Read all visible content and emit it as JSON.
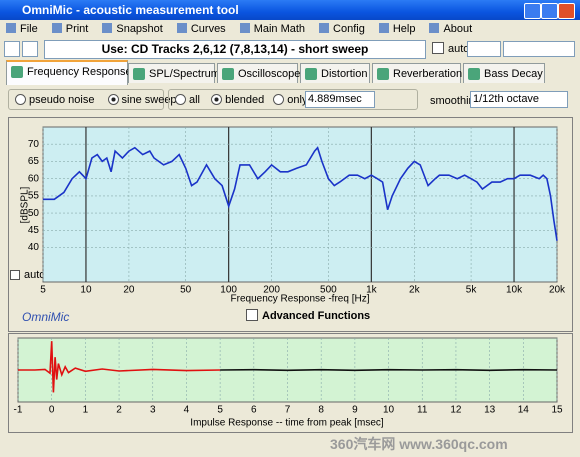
{
  "window": {
    "title": "OmniMic - acoustic measurement tool"
  },
  "menu": [
    "File",
    "Print",
    "Snapshot",
    "Curves",
    "Main Math",
    "Config",
    "Help",
    "About"
  ],
  "toolbar": {
    "status": "Use: CD Tracks 2,6,12 (7,8,13,14) - short sweep",
    "auto": "auto"
  },
  "tabs": [
    "Frequency Response",
    "SPL/Spectrum",
    "Oscilloscope",
    "Distortion",
    "Reverberation",
    "Bass Decay"
  ],
  "options": {
    "pseudo_noise": "pseudo noise",
    "sine_sweep": "sine sweep",
    "all": "all",
    "blended": "blended",
    "only_to": "only to",
    "window_time": "4.889msec",
    "smoothing_label": "smoothing",
    "smoothing": "1/12th octave"
  },
  "frequency_chart": {
    "type": "line",
    "ylabel": "[dBSPL]",
    "xlabel": "Frequency Response -freq [Hz]",
    "auto": "auto",
    "log_x": true,
    "grid": true,
    "color": "#1a33c8",
    "background": "#cdeef2",
    "xlim": [
      5,
      20000
    ],
    "xticks": [
      5,
      10,
      20,
      50,
      100,
      200,
      500,
      {
        "value": 1000,
        "label": "1k"
      },
      {
        "value": 2000,
        "label": "2k"
      },
      {
        "value": 5000,
        "label": "5k"
      },
      {
        "value": 10000,
        "label": "10k"
      },
      {
        "value": 20000,
        "label": "20k"
      }
    ],
    "ylim": [
      30,
      75
    ],
    "yticks": [
      40,
      45,
      50,
      55,
      60,
      65,
      70
    ],
    "x": [
      5,
      6,
      7,
      8,
      9,
      10,
      11,
      12,
      13,
      14,
      15,
      16,
      17,
      18,
      20,
      22,
      25,
      28,
      30,
      35,
      40,
      45,
      50,
      55,
      60,
      70,
      80,
      90,
      100,
      110,
      120,
      140,
      160,
      180,
      200,
      230,
      260,
      300,
      350,
      400,
      420,
      450,
      500,
      550,
      600,
      700,
      800,
      900,
      1000,
      1100,
      1200,
      1300,
      1400,
      1600,
      1800,
      2000,
      2200,
      2500,
      2800,
      3000,
      3500,
      4000,
      4500,
      5000,
      5500,
      6000,
      7000,
      8000,
      9000,
      10000,
      11000,
      13000,
      15000,
      16000,
      17000,
      18000,
      19000,
      20000
    ],
    "values": [
      54,
      54,
      56,
      60,
      62,
      60,
      66,
      67,
      65,
      66,
      62,
      68,
      67,
      66,
      68,
      69,
      67,
      68,
      66,
      64,
      65,
      67,
      63,
      58,
      59,
      64,
      60,
      58,
      52,
      57,
      64,
      64,
      60,
      62,
      64,
      62,
      62,
      63,
      64,
      68,
      69,
      65,
      60,
      58,
      59,
      61,
      61,
      60,
      61,
      60,
      59,
      51,
      55,
      60,
      63,
      65,
      64,
      58,
      60,
      61,
      61,
      60,
      61,
      60,
      59,
      57,
      59,
      59,
      60,
      60,
      61,
      61,
      60,
      61,
      60,
      55,
      48,
      42
    ]
  },
  "brand": "OmniMic",
  "advanced": "Advanced Functions",
  "impulse_chart": {
    "type": "line",
    "xlabel": "Impulse Response  -- time from peak [msec]",
    "background": "#d3f3d3",
    "grid": true,
    "xlim": [
      -1,
      15
    ],
    "xticks": [
      -1,
      0,
      1,
      2,
      3,
      4,
      5,
      6,
      7,
      8,
      9,
      10,
      11,
      12,
      13,
      14,
      15
    ],
    "ylim": [
      -1,
      1
    ],
    "series": [
      {
        "color": "#e01010",
        "x": [
          -1,
          -0.5,
          -0.2,
          -0.05,
          0,
          0.05,
          0.1,
          0.15,
          0.2,
          0.3,
          0.4,
          0.5,
          0.7,
          1,
          1.5,
          2,
          3,
          4,
          5
        ],
        "values": [
          0,
          0,
          0.02,
          -0.1,
          0.9,
          -0.7,
          0.4,
          -0.3,
          0.2,
          -0.15,
          0.1,
          -0.08,
          0.06,
          -0.04,
          0.03,
          -0.03,
          0.02,
          -0.02,
          0
        ]
      },
      {
        "color": "#111111",
        "x": [
          5,
          6,
          7,
          8,
          9,
          10,
          11,
          12,
          13,
          14,
          15
        ],
        "values": [
          0,
          0.01,
          -0.01,
          0.01,
          -0.01,
          0.01,
          0,
          0.01,
          -0.01,
          0.01,
          0
        ]
      }
    ]
  },
  "watermark": "360汽车网 www.360qc.com"
}
